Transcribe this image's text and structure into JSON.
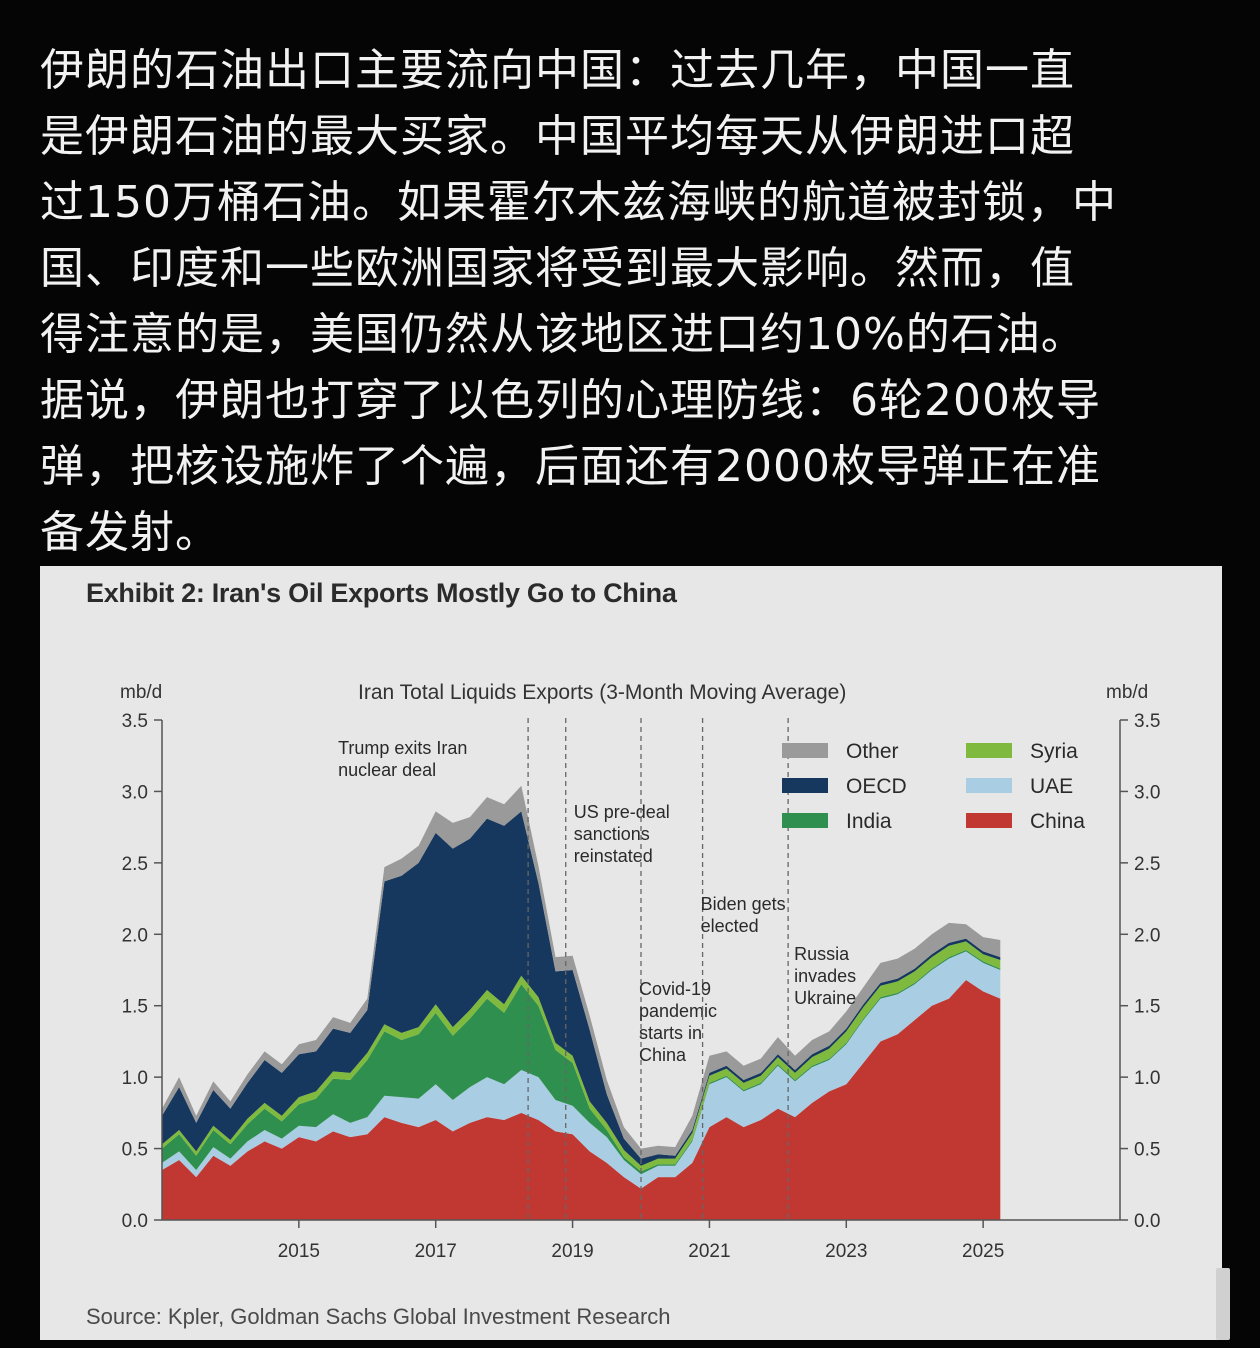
{
  "post": {
    "lines": [
      "伊朗的石油出口主要流向中国：过去几年，中国一直",
      "是伊朗石油的最大买家。中国平均每天从伊朗进口超",
      "过150万桶石油。如果霍尔木兹海峡的航道被封锁，中",
      "国、印度和一些欧洲国家将受到最大影响。然而，值",
      "得注意的是，美国仍然从该地区进口约10%的石油。",
      "据说，伊朗也打穿了以色列的心理防线：6轮200枚导",
      "弹，把核设施炸了个遍，后面还有2000枚导弹正在准",
      "备发射。"
    ]
  },
  "chart_data": {
    "type": "area",
    "stacked": true,
    "title": "Exhibit 2: Iran's Oil Exports Mostly Go to China",
    "subtitle": "Iran Total Liquids Exports (3-Month Moving Average)",
    "source": "Source: Kpler, Goldman Sachs Global Investment Research",
    "ylabel_left": "mb/d",
    "ylabel_right": "mb/d",
    "ylim": [
      0,
      3.5
    ],
    "yticks": [
      "0.0",
      "0.5",
      "1.0",
      "1.5",
      "2.0",
      "2.5",
      "3.0",
      "3.5"
    ],
    "xlim": [
      2013.0,
      2027.0
    ],
    "xticks": [
      "2015",
      "2017",
      "2019",
      "2021",
      "2023",
      "2025"
    ],
    "legend_position": "top-right",
    "x": [
      2013.0,
      2013.25,
      2013.5,
      2013.75,
      2014.0,
      2014.25,
      2014.5,
      2014.75,
      2015.0,
      2015.25,
      2015.5,
      2015.75,
      2016.0,
      2016.25,
      2016.5,
      2016.75,
      2017.0,
      2017.25,
      2017.5,
      2017.75,
      2018.0,
      2018.25,
      2018.5,
      2018.75,
      2019.0,
      2019.25,
      2019.5,
      2019.75,
      2020.0,
      2020.25,
      2020.5,
      2020.75,
      2021.0,
      2021.25,
      2021.5,
      2021.75,
      2022.0,
      2022.25,
      2022.5,
      2022.75,
      2023.0,
      2023.25,
      2023.5,
      2023.75,
      2024.0,
      2024.25,
      2024.5,
      2024.75,
      2025.0,
      2025.25
    ],
    "series": [
      {
        "name": "China",
        "color": "#c13832",
        "values": [
          0.35,
          0.42,
          0.3,
          0.45,
          0.38,
          0.48,
          0.55,
          0.5,
          0.58,
          0.55,
          0.62,
          0.58,
          0.6,
          0.72,
          0.68,
          0.65,
          0.7,
          0.62,
          0.68,
          0.72,
          0.7,
          0.75,
          0.7,
          0.62,
          0.6,
          0.48,
          0.4,
          0.3,
          0.22,
          0.3,
          0.3,
          0.4,
          0.65,
          0.72,
          0.65,
          0.7,
          0.78,
          0.72,
          0.82,
          0.9,
          0.95,
          1.1,
          1.25,
          1.3,
          1.4,
          1.5,
          1.55,
          1.68,
          1.6,
          1.55
        ]
      },
      {
        "name": "UAE",
        "color": "#a9cde3",
        "values": [
          0.05,
          0.06,
          0.05,
          0.06,
          0.05,
          0.07,
          0.08,
          0.07,
          0.08,
          0.1,
          0.12,
          0.1,
          0.12,
          0.15,
          0.18,
          0.2,
          0.25,
          0.22,
          0.25,
          0.28,
          0.25,
          0.3,
          0.3,
          0.22,
          0.2,
          0.2,
          0.18,
          0.12,
          0.1,
          0.08,
          0.08,
          0.15,
          0.3,
          0.28,
          0.25,
          0.25,
          0.3,
          0.25,
          0.25,
          0.22,
          0.28,
          0.3,
          0.3,
          0.28,
          0.25,
          0.25,
          0.28,
          0.2,
          0.2,
          0.2
        ]
      },
      {
        "name": "India",
        "color": "#2f8f4e",
        "values": [
          0.1,
          0.12,
          0.1,
          0.12,
          0.1,
          0.12,
          0.15,
          0.12,
          0.15,
          0.2,
          0.25,
          0.3,
          0.4,
          0.45,
          0.4,
          0.45,
          0.5,
          0.45,
          0.48,
          0.55,
          0.5,
          0.6,
          0.5,
          0.35,
          0.3,
          0.1,
          0.05,
          0.02,
          0.02,
          0.01,
          0.01,
          0.01,
          0.01,
          0.01,
          0.01,
          0.01,
          0.01,
          0.01,
          0.01,
          0.01,
          0.01,
          0.01,
          0.01,
          0.01,
          0.01,
          0.01,
          0.01,
          0.01,
          0.01,
          0.01
        ]
      },
      {
        "name": "Syria",
        "color": "#7fba3e",
        "values": [
          0.03,
          0.03,
          0.03,
          0.03,
          0.03,
          0.04,
          0.04,
          0.04,
          0.05,
          0.05,
          0.05,
          0.05,
          0.05,
          0.05,
          0.05,
          0.05,
          0.06,
          0.06,
          0.06,
          0.06,
          0.06,
          0.06,
          0.06,
          0.05,
          0.05,
          0.05,
          0.05,
          0.05,
          0.04,
          0.04,
          0.04,
          0.05,
          0.05,
          0.05,
          0.05,
          0.05,
          0.05,
          0.05,
          0.06,
          0.07,
          0.08,
          0.08,
          0.08,
          0.08,
          0.08,
          0.08,
          0.08,
          0.06,
          0.05,
          0.06
        ]
      },
      {
        "name": "OECD",
        "color": "#16375e",
        "values": [
          0.2,
          0.3,
          0.2,
          0.25,
          0.22,
          0.25,
          0.3,
          0.3,
          0.3,
          0.28,
          0.3,
          0.28,
          0.3,
          1.0,
          1.1,
          1.15,
          1.2,
          1.25,
          1.2,
          1.2,
          1.25,
          1.15,
          0.8,
          0.5,
          0.6,
          0.5,
          0.2,
          0.08,
          0.05,
          0.03,
          0.02,
          0.02,
          0.02,
          0.02,
          0.02,
          0.02,
          0.02,
          0.02,
          0.02,
          0.02,
          0.02,
          0.02,
          0.02,
          0.02,
          0.02,
          0.02,
          0.02,
          0.02,
          0.02,
          0.02
        ]
      },
      {
        "name": "Other",
        "color": "#9a9a9a",
        "values": [
          0.05,
          0.07,
          0.05,
          0.06,
          0.05,
          0.06,
          0.06,
          0.06,
          0.07,
          0.08,
          0.08,
          0.07,
          0.08,
          0.1,
          0.12,
          0.12,
          0.15,
          0.18,
          0.15,
          0.15,
          0.15,
          0.18,
          0.12,
          0.1,
          0.1,
          0.1,
          0.1,
          0.08,
          0.07,
          0.06,
          0.06,
          0.1,
          0.12,
          0.1,
          0.1,
          0.1,
          0.12,
          0.1,
          0.1,
          0.1,
          0.12,
          0.12,
          0.14,
          0.14,
          0.14,
          0.14,
          0.14,
          0.1,
          0.1,
          0.12
        ]
      }
    ],
    "events": [
      {
        "x": 2018.35,
        "label": [
          "Trump exits Iran",
          "nuclear deal"
        ]
      },
      {
        "x": 2018.9,
        "label": [
          "US pre-deal",
          "sanctions",
          "reinstated"
        ]
      },
      {
        "x": 2020.0,
        "label": [
          "Covid-19",
          "pandemic",
          "starts in",
          "China"
        ]
      },
      {
        "x": 2020.9,
        "label": [
          "Biden gets",
          "elected"
        ]
      },
      {
        "x": 2022.15,
        "label": [
          "Russia",
          "invades",
          "Ukraine"
        ]
      }
    ]
  }
}
